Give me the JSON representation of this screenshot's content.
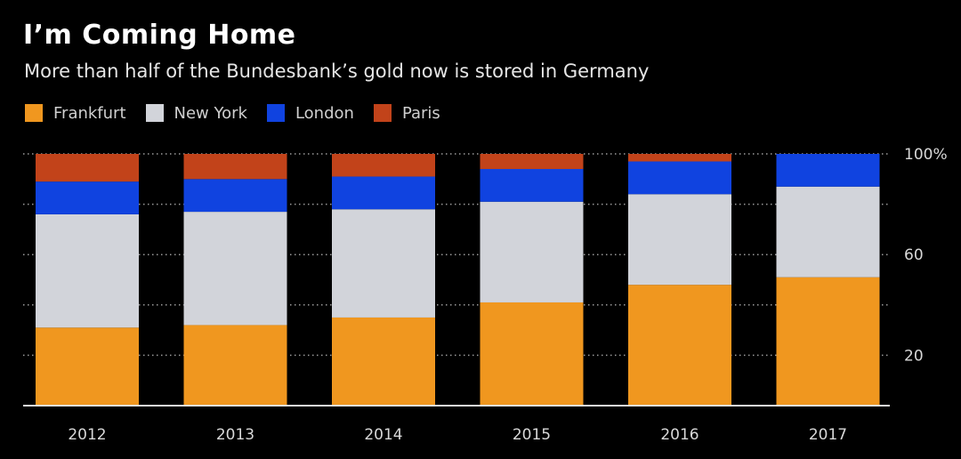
{
  "chart_data": {
    "type": "bar",
    "stacked": true,
    "title": "I’m Coming Home",
    "subtitle": "More than half of the Bundesbank’s gold now is stored in Germany",
    "categories": [
      "2012",
      "2013",
      "2014",
      "2015",
      "2016",
      "2017"
    ],
    "series": [
      {
        "name": "Frankfurt",
        "color": "#f0971f",
        "values": [
          31,
          32,
          35,
          41,
          48,
          51
        ]
      },
      {
        "name": "New York",
        "color": "#d2d4da",
        "values": [
          45,
          45,
          43,
          40,
          36,
          36
        ]
      },
      {
        "name": "London",
        "color": "#1043e0",
        "values": [
          13,
          13,
          13,
          13,
          13,
          13
        ]
      },
      {
        "name": "Paris",
        "color": "#c2431a",
        "values": [
          11,
          10,
          9,
          6,
          3,
          0
        ]
      }
    ],
    "ylim": [
      0,
      100
    ],
    "yticks": [
      0,
      20,
      40,
      60,
      80,
      100
    ],
    "ytick_labels": [
      "",
      "20",
      "",
      "60",
      "",
      "100%"
    ],
    "xlabel": "",
    "ylabel": "",
    "legend_position": "top-left",
    "grid": true
  }
}
